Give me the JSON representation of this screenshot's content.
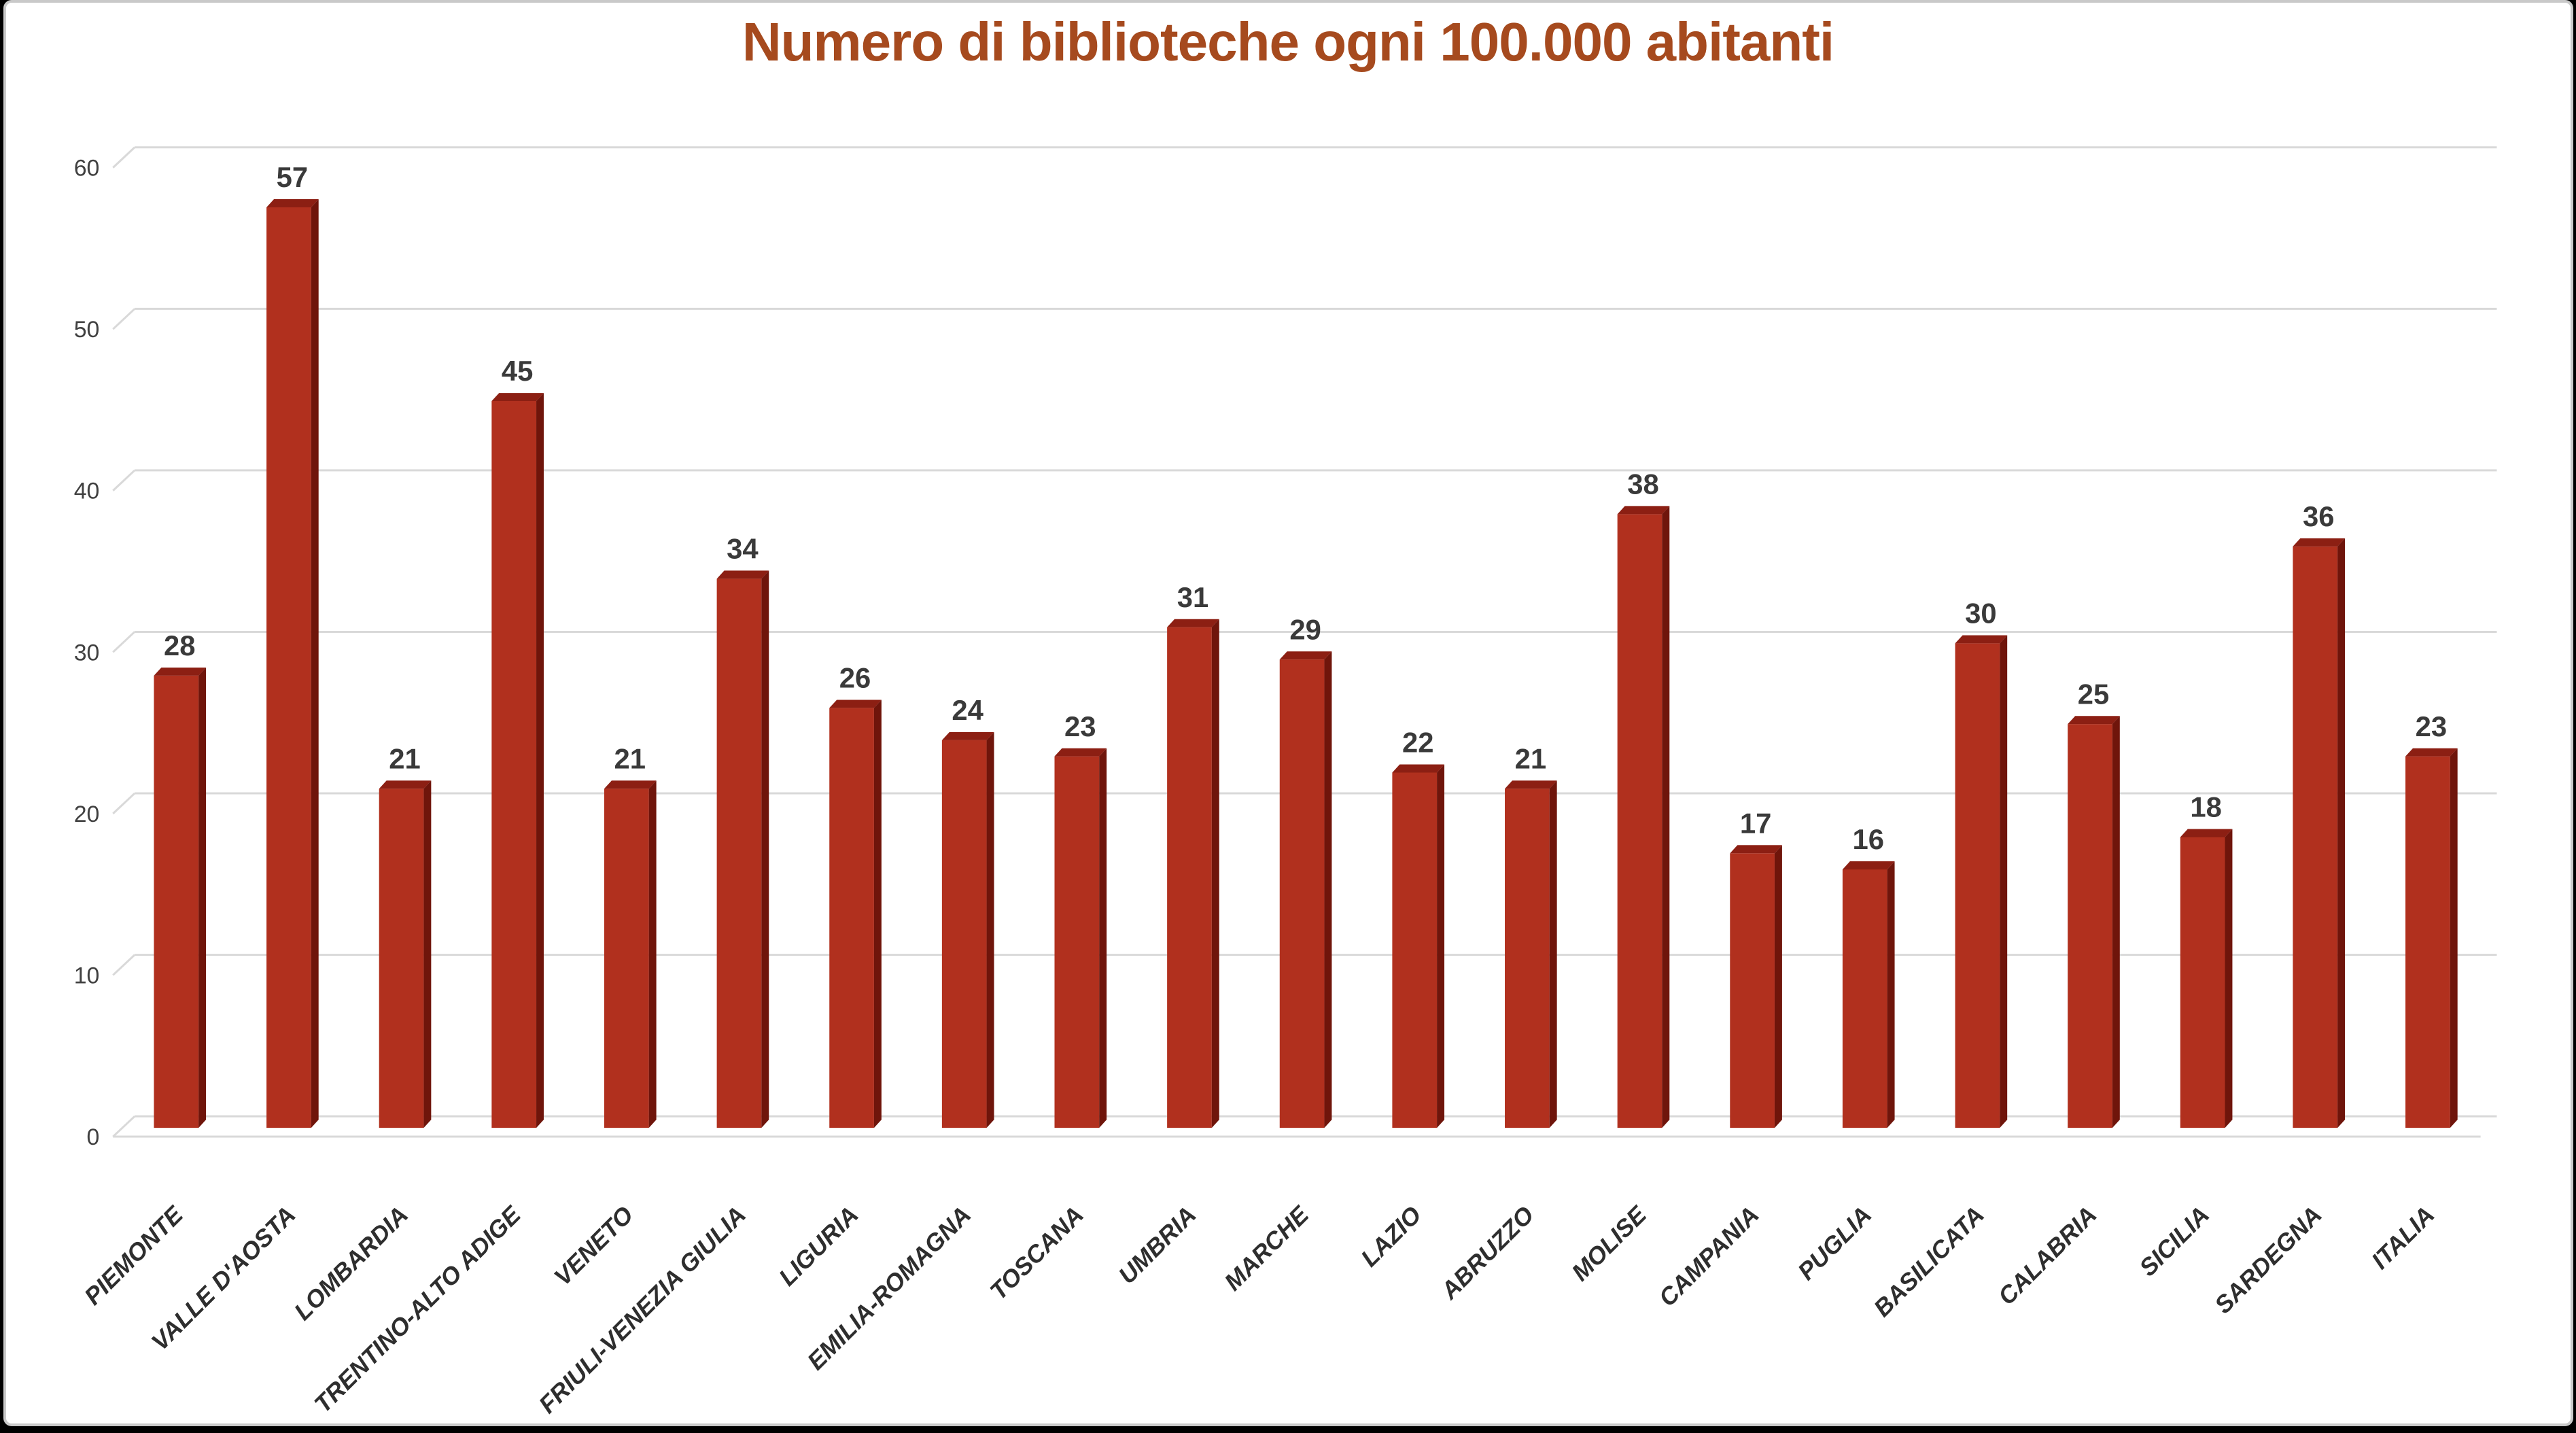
{
  "chart_data": {
    "type": "bar",
    "title": "Numero di biblioteche ogni 100.000 abitanti",
    "categories": [
      "PIEMONTE",
      "VALLE D'AOSTA",
      "LOMBARDIA",
      "TRENTINO-ALTO ADIGE",
      "VENETO",
      "FRIULI-VENEZIA GIULIA",
      "LIGURIA",
      "EMILIA-ROMAGNA",
      "TOSCANA",
      "UMBRIA",
      "MARCHE",
      "LAZIO",
      "ABRUZZO",
      "MOLISE",
      "CAMPANIA",
      "PUGLIA",
      "BASILICATA",
      "CALABRIA",
      "SICILIA",
      "SARDEGNA",
      "ITALIA"
    ],
    "values": [
      28,
      57,
      21,
      45,
      21,
      34,
      26,
      24,
      23,
      31,
      29,
      22,
      21,
      38,
      17,
      16,
      30,
      25,
      18,
      36,
      23
    ],
    "y_ticks": [
      0,
      10,
      20,
      30,
      40,
      50,
      60
    ],
    "ylim": [
      0,
      60
    ],
    "xlabel": "",
    "ylabel": "",
    "grid": true,
    "legend": "none",
    "style_3d": true,
    "value_labels_shown": true,
    "colors": {
      "bar_front": "#B1301E",
      "bar_top": "#8C1F13",
      "bar_side": "#6F150B",
      "gridline": "#D9D9D9",
      "title": "#A64A1E",
      "value_label": "#3A3A3A",
      "y_tick_label": "#404040",
      "category_label": "#2E2E2E",
      "card_border": "#C9C9C9",
      "frame_background": "#000000",
      "plot_background": "#FFFFFF"
    }
  }
}
